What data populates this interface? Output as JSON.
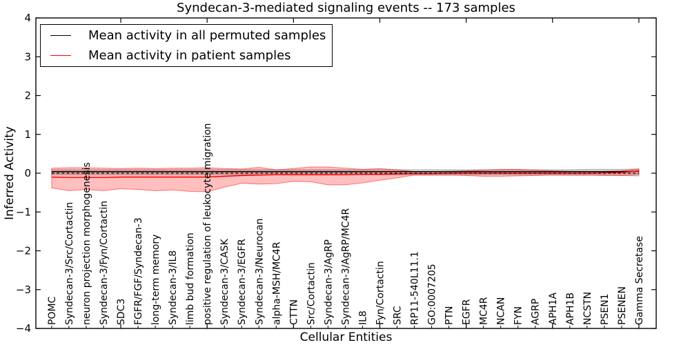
{
  "figure": {
    "title": "Syndecan-3-mediated signaling events -- 173 samples",
    "xlabel": "Cellular Entities",
    "ylabel": "Inferred Activity"
  },
  "legend": {
    "position": "upper left",
    "items": [
      {
        "label": "Mean activity in all permuted samples",
        "color": "#000000"
      },
      {
        "label": "Mean activity in patient samples",
        "color": "#ff0000"
      }
    ]
  },
  "chart_data": {
    "type": "line",
    "title": "Syndecan-3-mediated signaling events -- 173 samples",
    "xlabel": "Cellular Entities",
    "ylabel": "Inferred Activity",
    "ylim": [
      -4,
      4
    ],
    "yticks": [
      -4,
      -3,
      -2,
      -1,
      0,
      1,
      2,
      3,
      4
    ],
    "grid": false,
    "legend_position": "upper left",
    "x_major_tick_indices": [
      4,
      9,
      14,
      19,
      24,
      29,
      34
    ],
    "categories": [
      "POMC",
      "Syndecan-3/Src/Cortactin",
      "neuron projection morphogenesis",
      "Syndecan-3/Fyn/Cortactin",
      "SDC3",
      "FGFR/FGF/Syndecan-3",
      "long-term memory",
      "Syndecan-3/IL8",
      "limb bud formation",
      "positive regulation of leukocyte migration",
      "Syndecan-3/CASK",
      "Syndecan-3/EGFR",
      "Syndecan-3/Neurocan",
      "alpha-MSH/MC4R",
      "CTTN",
      "Src/Cortactin",
      "Syndecan-3/AgRP",
      "Syndecan-3/AgRP/MC4R",
      "IL8",
      "Fyn/Cortactin",
      "SRC",
      "RP11-540L11.1",
      "GO:0007205",
      "PTN",
      "EGFR",
      "MC4R",
      "NCAN",
      "FYN",
      "AGRP",
      "APH1A",
      "APH1B",
      "NCSTN",
      "PSEN1",
      "PSENEN",
      "Gamma Secretase"
    ],
    "series": [
      {
        "name": "Mean activity in all permuted samples",
        "color": "#000000",
        "style": "solid",
        "values": [
          0.04,
          0.04,
          0.04,
          0.04,
          0.04,
          0.04,
          0.04,
          0.04,
          0.04,
          0.04,
          0.04,
          0.04,
          0.04,
          0.04,
          0.04,
          0.04,
          0.04,
          0.04,
          0.04,
          0.04,
          0.04,
          0.04,
          0.04,
          0.04,
          0.04,
          0.04,
          0.04,
          0.04,
          0.04,
          0.04,
          0.04,
          0.04,
          0.04,
          0.04,
          0.05
        ]
      },
      {
        "name": "Mean activity in patient samples",
        "color": "#ff0000",
        "style": "solid",
        "values": [
          -0.1,
          -0.11,
          -0.11,
          -0.11,
          -0.1,
          -0.1,
          -0.1,
          -0.1,
          -0.1,
          -0.1,
          -0.08,
          -0.06,
          -0.05,
          -0.04,
          -0.04,
          -0.04,
          -0.04,
          -0.04,
          -0.03,
          -0.03,
          -0.02,
          -0.01,
          -0.01,
          0,
          0,
          0,
          0,
          0,
          0,
          0,
          0,
          0,
          0.01,
          0.02,
          0.06
        ]
      },
      {
        "name": "zero-reference",
        "color": "#000000",
        "style": "dashed",
        "values": [
          0,
          0,
          0,
          0,
          0,
          0,
          0,
          0,
          0,
          0,
          0,
          0,
          0,
          0,
          0,
          0,
          0,
          0,
          0,
          0,
          0,
          0,
          0,
          0,
          0,
          0,
          0,
          0,
          0,
          0,
          0,
          0,
          0,
          0,
          0
        ]
      }
    ],
    "bands": [
      {
        "name": "permuted-activity-range",
        "color": "#777777",
        "fill_opacity": 0.28,
        "edge_opacity": 0.55,
        "high": [
          0.09,
          0.09,
          0.09,
          0.09,
          0.09,
          0.09,
          0.09,
          0.09,
          0.09,
          0.09,
          0.09,
          0.09,
          0.09,
          0.09,
          0.09,
          0.09,
          0.09,
          0.09,
          0.09,
          0.09,
          0.09,
          0.09,
          0.09,
          0.09,
          0.09,
          0.09,
          0.09,
          0.09,
          0.09,
          0.09,
          0.09,
          0.1,
          0.1,
          0.1,
          0.11
        ],
        "low": [
          -0.04,
          -0.04,
          -0.04,
          -0.04,
          -0.04,
          -0.04,
          -0.04,
          -0.04,
          -0.04,
          -0.04,
          -0.04,
          -0.04,
          -0.04,
          -0.04,
          -0.04,
          -0.04,
          -0.04,
          -0.04,
          -0.04,
          -0.04,
          -0.04,
          -0.04,
          -0.04,
          -0.04,
          -0.04,
          -0.04,
          -0.04,
          -0.04,
          -0.04,
          -0.04,
          -0.05,
          -0.05,
          -0.06,
          -0.06,
          -0.07
        ]
      },
      {
        "name": "patient-activity-range",
        "color": "#ff0000",
        "fill_opacity": 0.25,
        "edge_opacity": 0.5,
        "high": [
          0.13,
          0.14,
          0.14,
          0.13,
          0.12,
          0.13,
          0.12,
          0.13,
          0.13,
          0.14,
          0.12,
          0.11,
          0.15,
          0.09,
          0.12,
          0.16,
          0.16,
          0.13,
          0.1,
          0.12,
          0.09,
          0.04,
          0.04,
          0.05,
          0.06,
          0.08,
          0.1,
          0.1,
          0.08,
          0.06,
          0.05,
          0.05,
          0.05,
          0.06,
          0.11
        ],
        "low": [
          -0.38,
          -0.45,
          -0.42,
          -0.45,
          -0.4,
          -0.42,
          -0.45,
          -0.43,
          -0.47,
          -0.48,
          -0.36,
          -0.26,
          -0.28,
          -0.27,
          -0.21,
          -0.22,
          -0.3,
          -0.3,
          -0.25,
          -0.18,
          -0.12,
          -0.05,
          -0.05,
          -0.05,
          -0.06,
          -0.08,
          -0.08,
          -0.07,
          -0.06,
          -0.05,
          -0.05,
          -0.05,
          -0.05,
          -0.06,
          -0.03
        ]
      }
    ]
  }
}
